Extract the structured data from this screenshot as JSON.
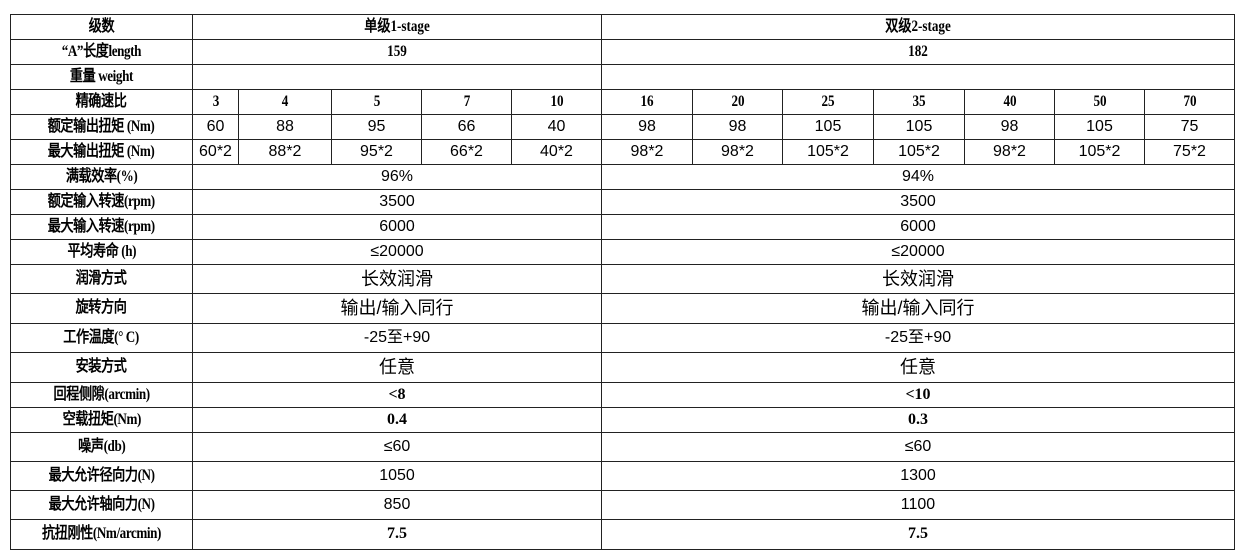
{
  "header": {
    "label": "级数",
    "stage1": "单级1-stage",
    "stage2": "双级2-stage"
  },
  "length": {
    "label": "“A”长度length",
    "stage1": "159",
    "stage2": "182"
  },
  "weight": {
    "label": "重量 weight",
    "stage1": "",
    "stage2": ""
  },
  "ratio": {
    "label": "精确速比",
    "values": [
      "3",
      "4",
      "5",
      "7",
      "10",
      "16",
      "20",
      "25",
      "35",
      "40",
      "50",
      "70"
    ]
  },
  "rated_torque": {
    "label": "额定输出扭矩 (Nm)",
    "values": [
      "60",
      "88",
      "95",
      "66",
      "40",
      "98",
      "98",
      "105",
      "105",
      "98",
      "105",
      "75"
    ]
  },
  "max_torque": {
    "label": "最大输出扭矩 (Nm)",
    "values": [
      "60*2",
      "88*2",
      "95*2",
      "66*2",
      "40*2",
      "98*2",
      "98*2",
      "105*2",
      "105*2",
      "98*2",
      "105*2",
      "75*2"
    ]
  },
  "rows": [
    {
      "label": "满载效率(%)",
      "stage1": "96%",
      "stage2": "94%"
    },
    {
      "label": "额定输入转速(rpm)",
      "stage1": "3500",
      "stage2": "3500"
    },
    {
      "label": "最大输入转速(rpm)",
      "stage1": "6000",
      "stage2": "6000"
    },
    {
      "label": "平均寿命 (h)",
      "stage1": "≤20000",
      "stage2": "≤20000"
    },
    {
      "label": "润滑方式",
      "stage1": "长效润滑",
      "stage2": "长效润滑"
    },
    {
      "label": "旋转方向",
      "stage1": "输出/输入同行",
      "stage2": "输出/输入同行"
    },
    {
      "label": "工作温度(° C)",
      "stage1": "-25至+90",
      "stage2": "-25至+90"
    },
    {
      "label": "安装方式",
      "stage1": "任意",
      "stage2": "任意"
    },
    {
      "label": "回程侧隙(arcmin)",
      "stage1": "<8",
      "stage2": "<10"
    },
    {
      "label": "空载扭矩(Nm)",
      "stage1": "0.4",
      "stage2": "0.3"
    },
    {
      "label": "噪声(db)",
      "stage1": "≤60",
      "stage2": "≤60"
    },
    {
      "label": "最大允许径向力(N)",
      "stage1": "1050",
      "stage2": "1300"
    },
    {
      "label": "最大允许轴向力(N)",
      "stage1": "850",
      "stage2": "1100"
    },
    {
      "label": "抗扭刚性(Nm/arcmin)",
      "stage1": "7.5",
      "stage2": "7.5"
    }
  ]
}
